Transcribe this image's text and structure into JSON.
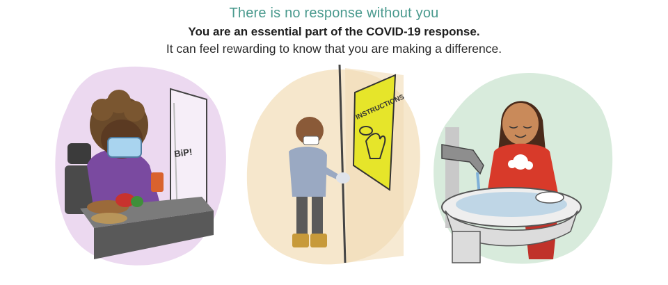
{
  "header": {
    "title": "There is no response without you",
    "subtitle": "You are an essential part of the COVID-19 response.",
    "body": "It can feel rewarding to know that you are making a difference."
  },
  "illustrations": {
    "cashier": {
      "sound_label": "BiP!"
    },
    "handwashing_sign": {
      "sign_label": "INSTRUCTIONS"
    }
  },
  "colors": {
    "title_teal": "#4a9a8e",
    "cashier_bg": "#ecd9f0",
    "worker_bg": "#f6e7cc",
    "girl_bg": "#d8ebdc",
    "sign_yellow": "#e6e52a"
  }
}
